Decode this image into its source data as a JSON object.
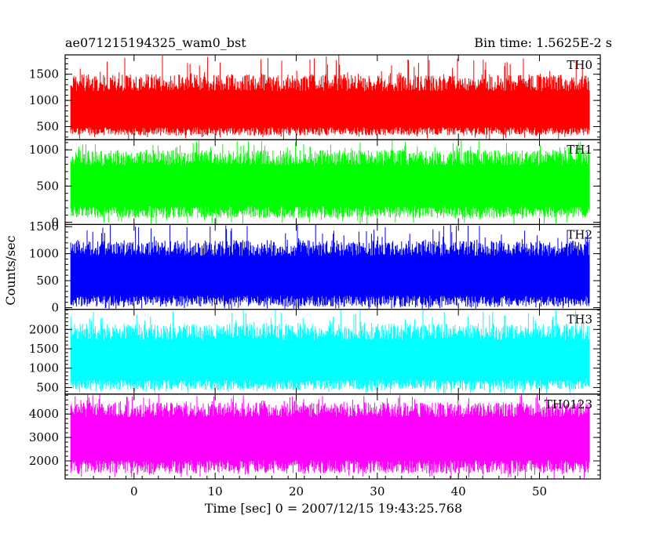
{
  "chart_data": {
    "type": "line",
    "title": "ae071215194325_wam0_bst",
    "subtitle": "Bin time: 1.5625E-2 s",
    "xlabel": "Time [sec] 0 = 2007/12/15 19:43:25.768",
    "ylabel": "Counts/sec",
    "xlim": [
      -8.5,
      57.5
    ],
    "x_range_data": [
      -7.8,
      56.2
    ],
    "x_ticks": [
      0,
      10,
      20,
      30,
      40,
      50
    ],
    "x_tick_labels": [
      "0",
      "10",
      "20",
      "30",
      "40",
      "50"
    ],
    "grid": false,
    "legend": "none",
    "panels": [
      {
        "name": "TH0",
        "color": "#ff0000",
        "ylim": [
          250,
          1870
        ],
        "yticks": [
          500,
          1000,
          1500
        ],
        "ytick_labels": [
          "500",
          "1000",
          "1500"
        ],
        "mean": 780,
        "low": 330,
        "high": 1500,
        "spike_high": 1870
      },
      {
        "name": "TH1",
        "color": "#00ff00",
        "ylim": [
          -30,
          1140
        ],
        "yticks": [
          0,
          500,
          1000
        ],
        "ytick_labels": [
          "0",
          "500",
          "1000"
        ],
        "mean": 520,
        "low": 60,
        "high": 1000,
        "spike_high": 1140
      },
      {
        "name": "TH2",
        "color": "#0000ff",
        "ylim": [
          -30,
          1540
        ],
        "yticks": [
          0,
          500,
          1000,
          1500
        ],
        "ytick_labels": [
          "0",
          "500",
          "1000",
          "1500"
        ],
        "mean": 600,
        "low": 20,
        "high": 1250,
        "spike_high": 1540
      },
      {
        "name": "TH3",
        "color": "#00ffff",
        "ylim": [
          330,
          2520
        ],
        "yticks": [
          500,
          1000,
          1500,
          2000
        ],
        "ytick_labels": [
          "500",
          "1000",
          "1500",
          "2000"
        ],
        "mean": 1200,
        "low": 430,
        "high": 2150,
        "spike_high": 2520
      },
      {
        "name": "TH0123",
        "color": "#ff00ff",
        "ylim": [
          1230,
          4850
        ],
        "yticks": [
          2000,
          3000,
          4000
        ],
        "ytick_labels": [
          "2000",
          "3000",
          "4000"
        ],
        "mean": 3100,
        "low": 1450,
        "high": 4500,
        "spike_high": 4850
      }
    ]
  }
}
